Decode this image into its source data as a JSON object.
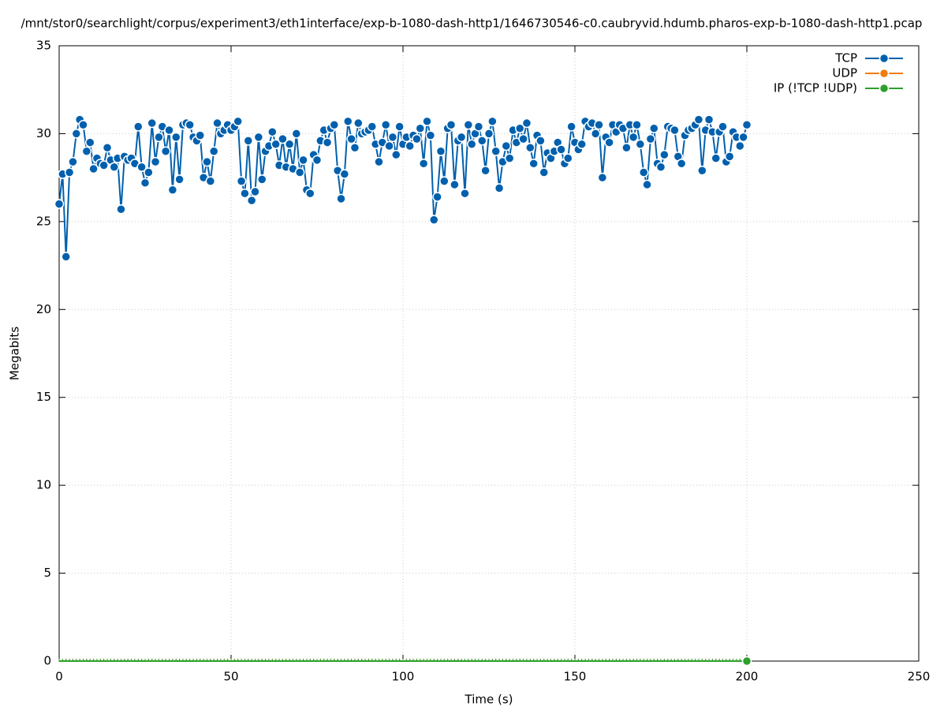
{
  "chart_data": {
    "type": "line",
    "title": "/mnt/stor0/searchlight/corpus/experiment3/eth1interface/exp-b-1080-dash-http1/1646730546-c0.caubryvid.hdumb.pharos-exp-b-1080-dash-http1.pcap",
    "xlabel": "Time (s)",
    "ylabel": "Megabits",
    "xlim": [
      0,
      250
    ],
    "xticks": [
      0,
      50,
      100,
      150,
      200,
      250
    ],
    "ylim": [
      0,
      35
    ],
    "yticks": [
      0,
      5,
      10,
      15,
      20,
      25,
      30,
      35
    ],
    "grid": true,
    "legend": "top-right",
    "x": [
      0,
      1,
      2,
      3,
      4,
      5,
      6,
      7,
      8,
      9,
      10,
      11,
      12,
      13,
      14,
      15,
      16,
      17,
      18,
      19,
      20,
      21,
      22,
      23,
      24,
      25,
      26,
      27,
      28,
      29,
      30,
      31,
      32,
      33,
      34,
      35,
      36,
      37,
      38,
      39,
      40,
      41,
      42,
      43,
      44,
      45,
      46,
      47,
      48,
      49,
      50,
      51,
      52,
      53,
      54,
      55,
      56,
      57,
      58,
      59,
      60,
      61,
      62,
      63,
      64,
      65,
      66,
      67,
      68,
      69,
      70,
      71,
      72,
      73,
      74,
      75,
      76,
      77,
      78,
      79,
      80,
      81,
      82,
      83,
      84,
      85,
      86,
      87,
      88,
      89,
      90,
      91,
      92,
      93,
      94,
      95,
      96,
      97,
      98,
      99,
      100,
      101,
      102,
      103,
      104,
      105,
      106,
      107,
      108,
      109,
      110,
      111,
      112,
      113,
      114,
      115,
      116,
      117,
      118,
      119,
      120,
      121,
      122,
      123,
      124,
      125,
      126,
      127,
      128,
      129,
      130,
      131,
      132,
      133,
      134,
      135,
      136,
      137,
      138,
      139,
      140,
      141,
      142,
      143,
      144,
      145,
      146,
      147,
      148,
      149,
      150,
      151,
      152,
      153,
      154,
      155,
      156,
      157,
      158,
      159,
      160,
      161,
      162,
      163,
      164,
      165,
      166,
      167,
      168,
      169,
      170,
      171,
      172,
      173,
      174,
      175,
      176,
      177,
      178,
      179,
      180,
      181,
      182,
      183,
      184,
      185,
      186,
      187,
      188,
      189,
      190,
      191,
      192,
      193,
      194,
      195,
      196,
      197,
      198,
      199,
      200
    ],
    "series": [
      {
        "name": "TCP",
        "color": "#0060ad",
        "values": [
          26.0,
          27.7,
          23.0,
          27.8,
          28.4,
          30.0,
          30.8,
          30.5,
          29.0,
          29.5,
          28.0,
          28.6,
          28.3,
          28.2,
          29.2,
          28.5,
          28.1,
          28.6,
          25.7,
          28.7,
          28.5,
          28.6,
          28.3,
          30.4,
          28.1,
          27.2,
          27.8,
          30.6,
          28.4,
          29.8,
          30.4,
          29.0,
          30.2,
          26.8,
          29.8,
          27.4,
          30.5,
          30.6,
          30.5,
          29.8,
          29.6,
          29.9,
          27.5,
          28.4,
          27.3,
          29.0,
          30.6,
          30.0,
          30.2,
          30.5,
          30.2,
          30.4,
          30.7,
          27.3,
          26.6,
          29.6,
          26.2,
          26.7,
          29.8,
          27.4,
          29.0,
          29.3,
          30.1,
          29.4,
          28.2,
          29.7,
          28.1,
          29.4,
          28.0,
          30.0,
          27.8,
          28.5,
          26.8,
          26.6,
          28.8,
          28.5,
          29.6,
          30.2,
          29.5,
          30.3,
          30.5,
          27.9,
          26.3,
          27.7,
          30.7,
          29.7,
          29.2,
          30.6,
          30.0,
          30.1,
          30.2,
          30.4,
          29.4,
          28.4,
          29.5,
          30.5,
          29.3,
          29.8,
          28.8,
          30.4,
          29.4,
          29.8,
          29.3,
          29.9,
          29.7,
          30.3,
          28.3,
          30.7,
          29.9,
          25.1,
          26.4,
          29.0,
          27.3,
          30.3,
          30.5,
          27.1,
          29.6,
          29.8,
          26.6,
          30.5,
          29.4,
          30.0,
          30.4,
          29.6,
          27.9,
          30.0,
          30.7,
          29.0,
          26.9,
          28.4,
          29.3,
          28.6,
          30.2,
          29.5,
          30.3,
          29.7,
          30.6,
          29.2,
          28.3,
          29.9,
          29.6,
          27.8,
          28.9,
          28.6,
          29.0,
          29.5,
          29.1,
          28.3,
          28.6,
          30.4,
          29.5,
          29.1,
          29.4,
          30.7,
          30.4,
          30.6,
          30.0,
          30.5,
          27.5,
          29.8,
          29.5,
          30.5,
          30.1,
          30.5,
          30.3,
          29.2,
          30.5,
          29.8,
          30.5,
          29.4,
          27.8,
          27.1,
          29.7,
          30.3,
          28.3,
          28.1,
          28.8,
          30.4,
          30.3,
          30.2,
          28.7,
          28.3,
          29.9,
          30.2,
          30.3,
          30.5,
          30.8,
          27.9,
          30.2,
          30.8,
          30.1,
          28.6,
          30.1,
          30.4,
          28.4,
          28.7,
          30.1,
          29.8,
          29.3,
          29.8,
          30.5
        ]
      },
      {
        "name": "UDP",
        "color": "#f07d10",
        "values": [
          0,
          0,
          0,
          0,
          0,
          0,
          0,
          0,
          0,
          0,
          0,
          0,
          0,
          0,
          0,
          0,
          0,
          0,
          0,
          0,
          0,
          0,
          0,
          0,
          0,
          0,
          0,
          0,
          0,
          0,
          0,
          0,
          0,
          0,
          0,
          0,
          0,
          0,
          0,
          0,
          0,
          0,
          0,
          0,
          0,
          0,
          0,
          0,
          0,
          0,
          0,
          0,
          0,
          0,
          0,
          0,
          0,
          0,
          0,
          0,
          0,
          0,
          0,
          0,
          0,
          0,
          0,
          0,
          0,
          0,
          0,
          0,
          0,
          0,
          0,
          0,
          0,
          0,
          0,
          0,
          0,
          0,
          0,
          0,
          0,
          0,
          0,
          0,
          0,
          0,
          0,
          0,
          0,
          0,
          0,
          0,
          0,
          0,
          0,
          0,
          0,
          0,
          0,
          0,
          0,
          0,
          0,
          0,
          0,
          0,
          0,
          0,
          0,
          0,
          0,
          0,
          0,
          0,
          0,
          0,
          0,
          0,
          0,
          0,
          0,
          0,
          0,
          0,
          0,
          0,
          0,
          0,
          0,
          0,
          0,
          0,
          0,
          0,
          0,
          0,
          0,
          0,
          0,
          0,
          0,
          0,
          0,
          0,
          0,
          0,
          0,
          0,
          0,
          0,
          0,
          0,
          0,
          0,
          0,
          0,
          0,
          0,
          0,
          0,
          0,
          0,
          0,
          0,
          0,
          0,
          0,
          0,
          0,
          0,
          0,
          0,
          0,
          0,
          0,
          0,
          0,
          0,
          0,
          0,
          0,
          0,
          0,
          0,
          0,
          0,
          0,
          0,
          0,
          0,
          0,
          0,
          0,
          0,
          0,
          0,
          0
        ]
      },
      {
        "name": "IP (!TCP  !UDP)",
        "color": "#2ca02c",
        "values": [
          0,
          0,
          0,
          0,
          0,
          0,
          0,
          0,
          0,
          0,
          0,
          0,
          0,
          0,
          0,
          0,
          0,
          0,
          0,
          0,
          0,
          0,
          0,
          0,
          0,
          0,
          0,
          0,
          0,
          0,
          0,
          0,
          0,
          0,
          0,
          0,
          0,
          0,
          0,
          0,
          0,
          0,
          0,
          0,
          0,
          0,
          0,
          0,
          0,
          0,
          0,
          0,
          0,
          0,
          0,
          0,
          0,
          0,
          0,
          0,
          0,
          0,
          0,
          0,
          0,
          0,
          0,
          0,
          0,
          0,
          0,
          0,
          0,
          0,
          0,
          0,
          0,
          0,
          0,
          0,
          0,
          0,
          0,
          0,
          0,
          0,
          0,
          0,
          0,
          0,
          0,
          0,
          0,
          0,
          0,
          0,
          0,
          0,
          0,
          0,
          0,
          0,
          0,
          0,
          0,
          0,
          0,
          0,
          0,
          0,
          0,
          0,
          0,
          0,
          0,
          0,
          0,
          0,
          0,
          0,
          0,
          0,
          0,
          0,
          0,
          0,
          0,
          0,
          0,
          0,
          0,
          0,
          0,
          0,
          0,
          0,
          0,
          0,
          0,
          0,
          0,
          0,
          0,
          0,
          0,
          0,
          0,
          0,
          0,
          0,
          0,
          0,
          0,
          0,
          0,
          0,
          0,
          0,
          0,
          0,
          0,
          0,
          0,
          0,
          0,
          0,
          0,
          0,
          0,
          0,
          0,
          0,
          0,
          0,
          0,
          0,
          0,
          0,
          0,
          0,
          0,
          0,
          0,
          0,
          0,
          0,
          0,
          0,
          0,
          0,
          0,
          0,
          0,
          0,
          0,
          0,
          0,
          0,
          0,
          0,
          0
        ]
      }
    ]
  }
}
